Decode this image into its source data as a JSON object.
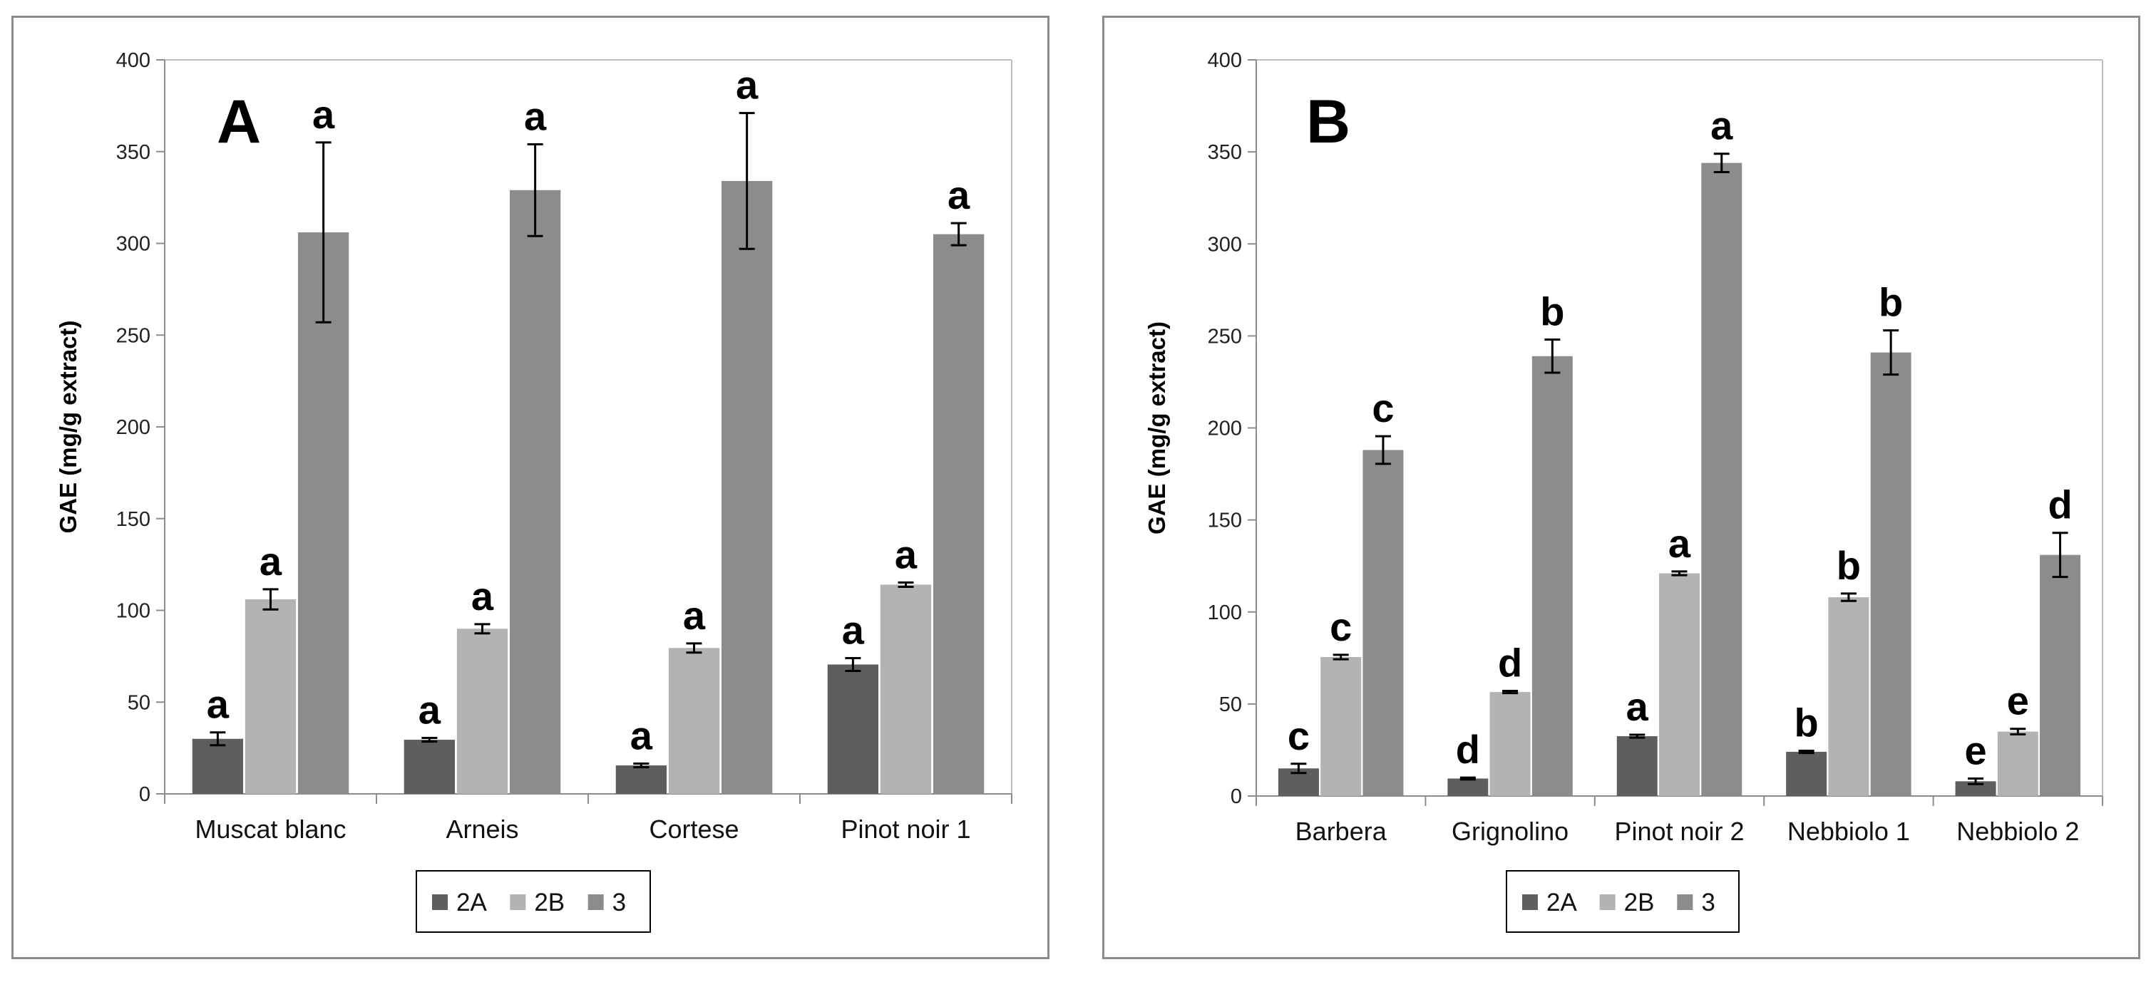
{
  "colors": {
    "2A": "#5e5e5e",
    "2B": "#b3b3b3",
    "3": "#8c8c8c",
    "axis": "#8c8c8c",
    "errorbar": "#000000"
  },
  "chart_data": [
    {
      "type": "bar",
      "panel_label": "A",
      "ylabel": "GAE (mg/g extract)",
      "ylim": [
        0,
        400
      ],
      "yticks": [
        "0",
        "50",
        "100",
        "150",
        "200",
        "250",
        "300",
        "350",
        "400"
      ],
      "categories": [
        "Muscat blanc",
        "Arneis",
        "Cortese",
        "Pinot noir 1"
      ],
      "legend_position": "bottom",
      "series": [
        {
          "name": "2A",
          "values": [
            30,
            29.5,
            15.5,
            70.5
          ],
          "errors": [
            3.5,
            1,
            1,
            3.5
          ],
          "letters": [
            "a",
            "a",
            "a",
            "a"
          ]
        },
        {
          "name": "2B",
          "values": [
            106,
            90,
            79.5,
            114
          ],
          "errors": [
            5.5,
            2.5,
            2.5,
            1.2
          ],
          "letters": [
            "a",
            "a",
            "a",
            "a"
          ]
        },
        {
          "name": "3",
          "values": [
            306,
            329,
            334,
            305
          ],
          "errors": [
            49,
            25,
            37,
            6
          ],
          "letters": [
            "a",
            "a",
            "a",
            "a"
          ]
        }
      ]
    },
    {
      "type": "bar",
      "panel_label": "B",
      "ylabel": "GAE (mg/g extract)",
      "ylim": [
        0,
        400
      ],
      "yticks": [
        "0",
        "50",
        "100",
        "150",
        "200",
        "250",
        "300",
        "350",
        "400"
      ],
      "categories": [
        "Barbera",
        "Grignolino",
        "Pinot noir 2",
        "Nebbiolo 1",
        "Nebbiolo 2"
      ],
      "legend_position": "bottom",
      "series": [
        {
          "name": "2A",
          "values": [
            15,
            9.5,
            32.5,
            24,
            8
          ],
          "errors": [
            2.5,
            0.5,
            0.8,
            0.6,
            1.5
          ],
          "letters": [
            "c",
            "d",
            "a",
            "b",
            "e"
          ]
        },
        {
          "name": "2B",
          "values": [
            75.5,
            56.5,
            121,
            108,
            35
          ],
          "errors": [
            1.2,
            0.6,
            1,
            2,
            1.5
          ],
          "letters": [
            "c",
            "d",
            "a",
            "b",
            "e"
          ]
        },
        {
          "name": "3",
          "values": [
            188,
            239,
            344,
            241,
            131
          ],
          "errors": [
            7.5,
            9,
            5,
            12,
            12
          ],
          "letters": [
            "c",
            "b",
            "a",
            "b",
            "d"
          ]
        }
      ]
    }
  ]
}
